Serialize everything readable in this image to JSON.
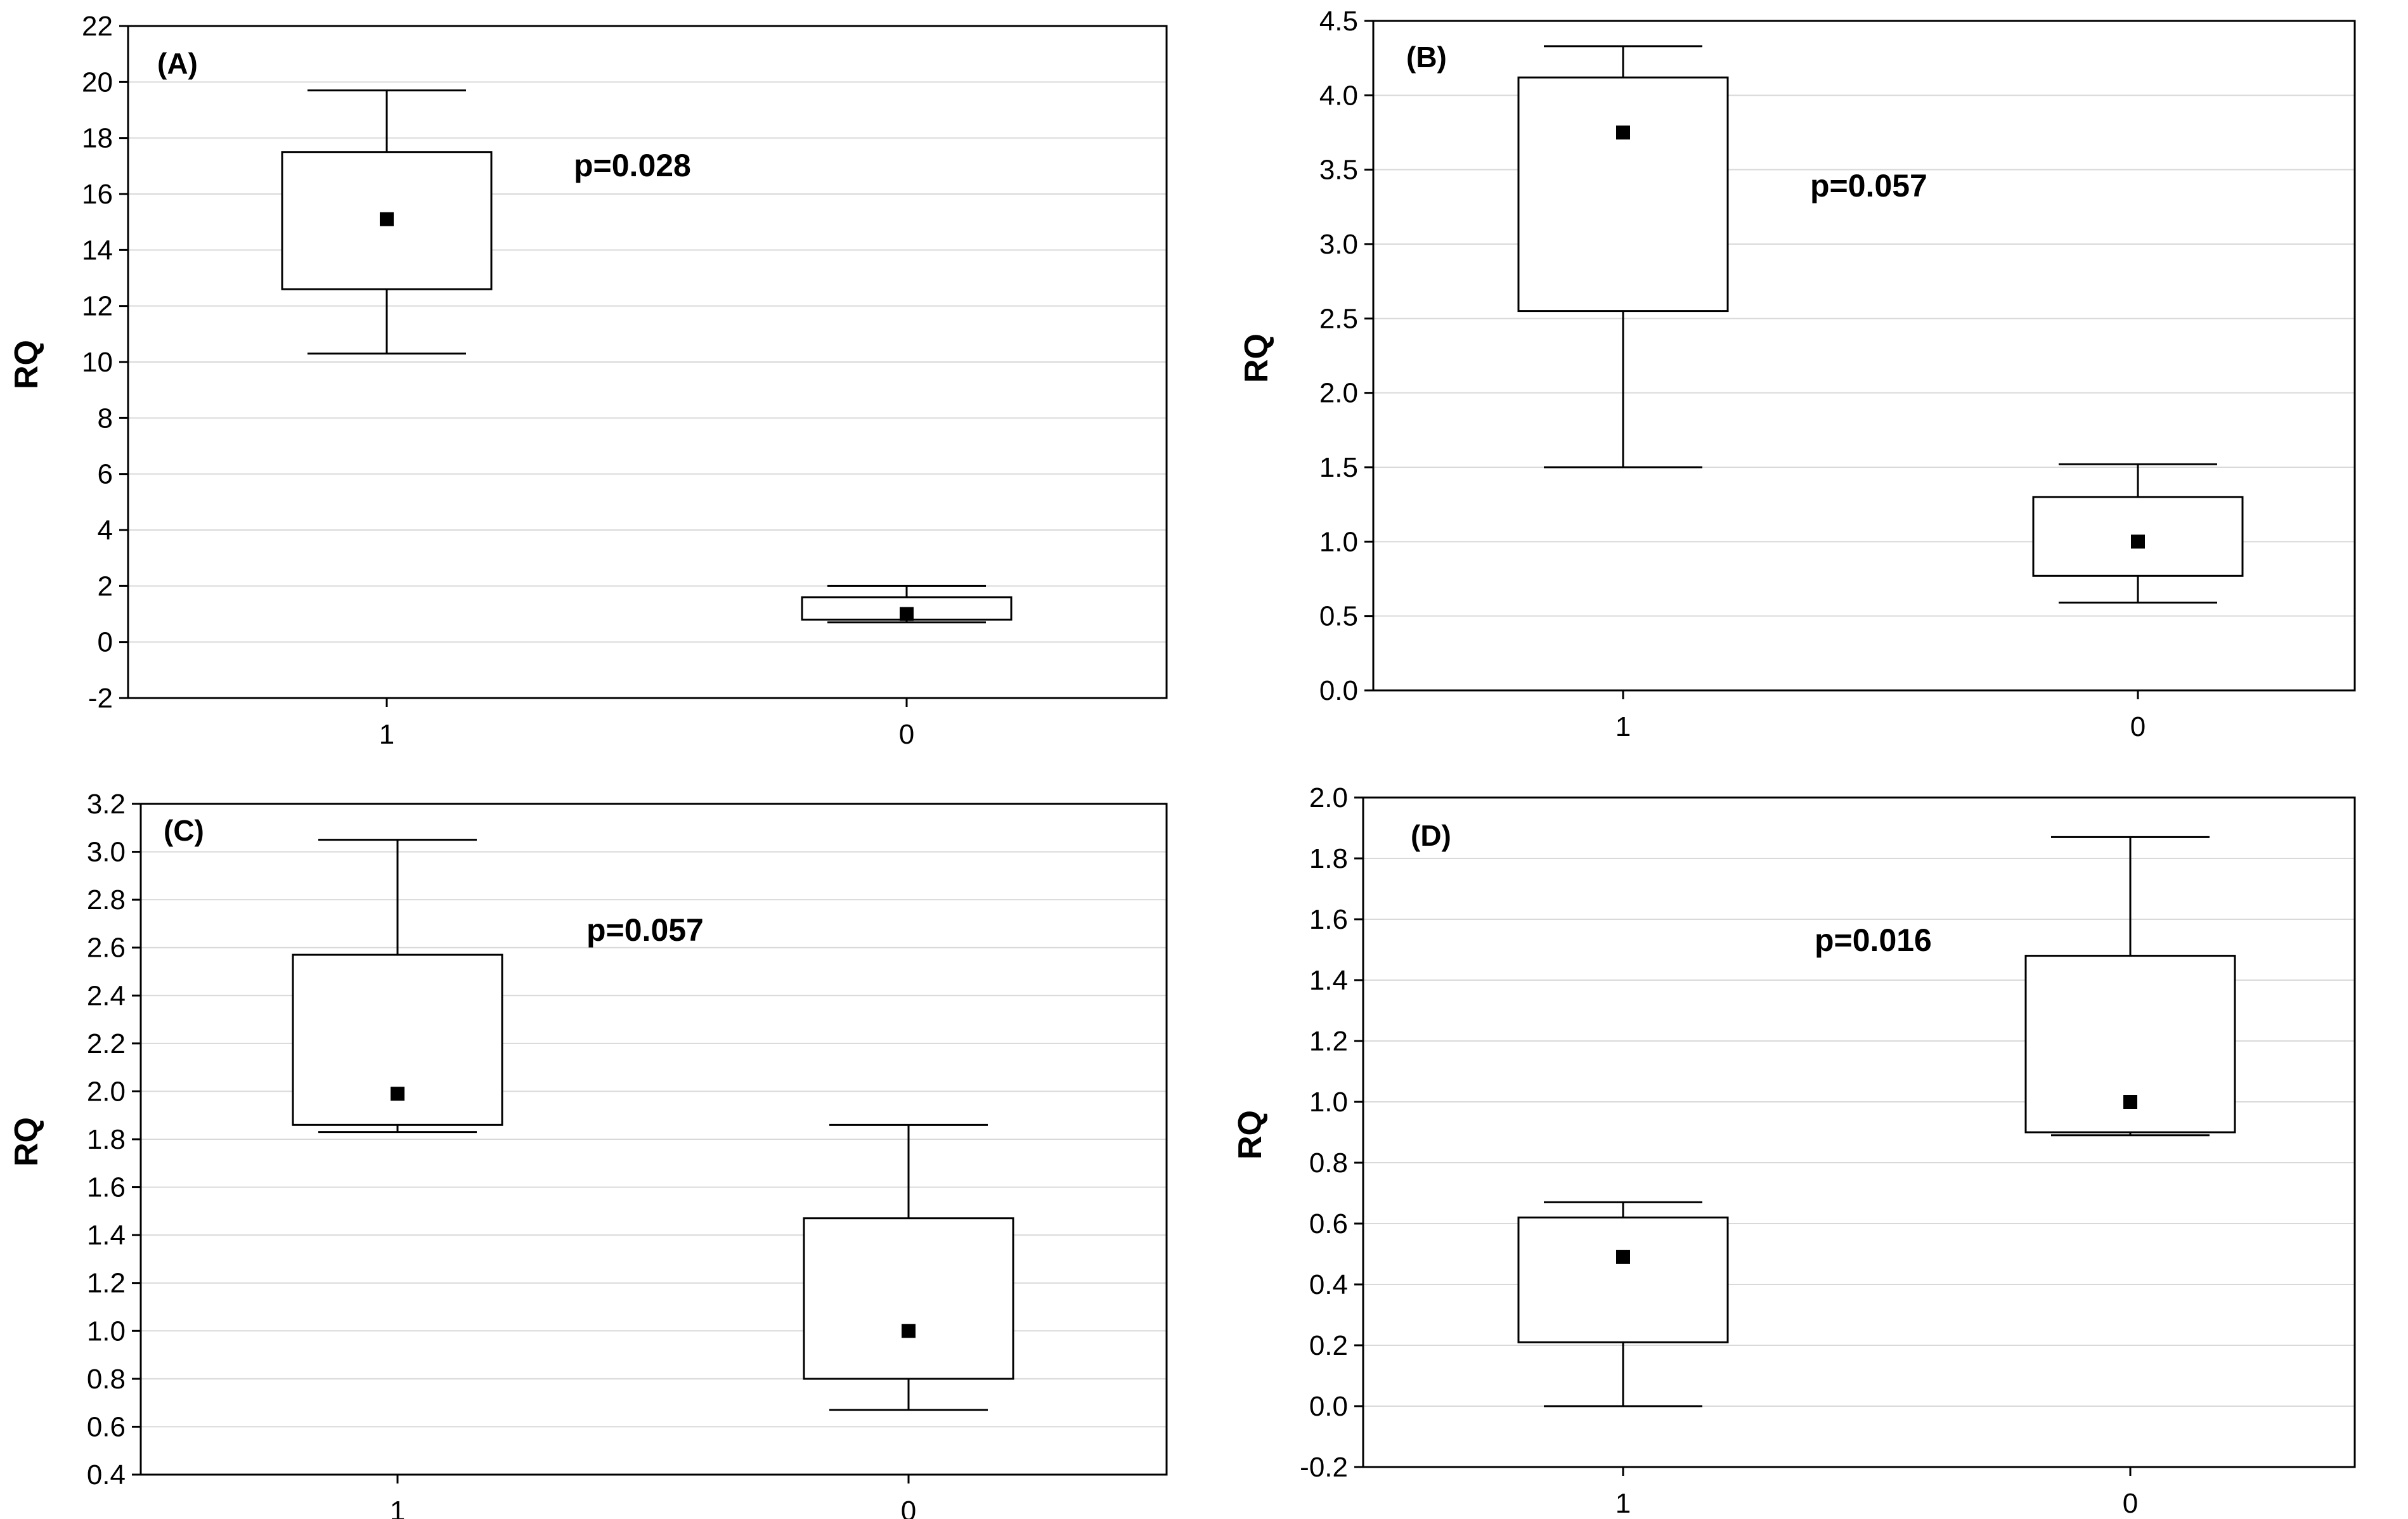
{
  "chart_data": [
    {
      "type": "box",
      "panel_label": "(A)",
      "annotation": "p=0.028",
      "xlabel": "",
      "ylabel": "RQ",
      "ylim": [
        -2,
        22
      ],
      "yticks": [
        -2,
        0,
        2,
        4,
        6,
        8,
        10,
        12,
        14,
        16,
        18,
        20,
        22
      ],
      "grid": true,
      "categories": [
        "1",
        "0"
      ],
      "boxes": [
        {
          "category": "1",
          "whisker_low": 10.3,
          "q1": 12.6,
          "median": 15.1,
          "q3": 17.5,
          "whisker_high": 19.7
        },
        {
          "category": "0",
          "whisker_low": 0.7,
          "q1": 0.8,
          "median": 1.0,
          "q3": 1.6,
          "whisker_high": 2.0
        }
      ]
    },
    {
      "type": "box",
      "panel_label": "(B)",
      "annotation": "p=0.057",
      "xlabel": "",
      "ylabel": "RQ",
      "ylim": [
        0,
        4.5
      ],
      "yticks": [
        "0.0",
        "0.5",
        "1.0",
        "1.5",
        "2.0",
        "2.5",
        "3.0",
        "3.5",
        "4.0",
        "4.5"
      ],
      "grid": true,
      "categories": [
        "1",
        "0"
      ],
      "boxes": [
        {
          "category": "1",
          "whisker_low": 1.5,
          "q1": 2.55,
          "median": 3.75,
          "q3": 4.12,
          "whisker_high": 4.33
        },
        {
          "category": "0",
          "whisker_low": 0.59,
          "q1": 0.77,
          "median": 1.0,
          "q3": 1.3,
          "whisker_high": 1.52
        }
      ]
    },
    {
      "type": "box",
      "panel_label": "(C)",
      "annotation": "p=0.057",
      "xlabel": "",
      "ylabel": "RQ",
      "ylim": [
        0.4,
        3.2
      ],
      "yticks": [
        "0.4",
        "0.6",
        "0.8",
        "1.0",
        "1.2",
        "1.4",
        "1.6",
        "1.8",
        "2.0",
        "2.2",
        "2.4",
        "2.6",
        "2.8",
        "3.0",
        "3.2"
      ],
      "grid": true,
      "categories": [
        "1",
        "0"
      ],
      "boxes": [
        {
          "category": "1",
          "whisker_low": 1.83,
          "q1": 1.86,
          "median": 1.99,
          "q3": 2.57,
          "whisker_high": 3.05
        },
        {
          "category": "0",
          "whisker_low": 0.67,
          "q1": 0.8,
          "median": 1.0,
          "q3": 1.47,
          "whisker_high": 1.86
        }
      ]
    },
    {
      "type": "box",
      "panel_label": "(D)",
      "annotation": "p=0.016",
      "xlabel": "",
      "ylabel": "RQ",
      "ylim": [
        -0.2,
        2.0
      ],
      "yticks": [
        "-0.2",
        "0.0",
        "0.2",
        "0.4",
        "0.6",
        "0.8",
        "1.0",
        "1.2",
        "1.4",
        "1.6",
        "1.8",
        "2.0"
      ],
      "grid": true,
      "categories": [
        "1",
        "0"
      ],
      "boxes": [
        {
          "category": "1",
          "whisker_low": 0.0,
          "q1": 0.21,
          "median": 0.49,
          "q3": 0.62,
          "whisker_high": 0.67
        },
        {
          "category": "0",
          "whisker_low": 0.89,
          "q1": 0.9,
          "median": 1.0,
          "q3": 1.48,
          "whisker_high": 1.87
        }
      ]
    }
  ]
}
